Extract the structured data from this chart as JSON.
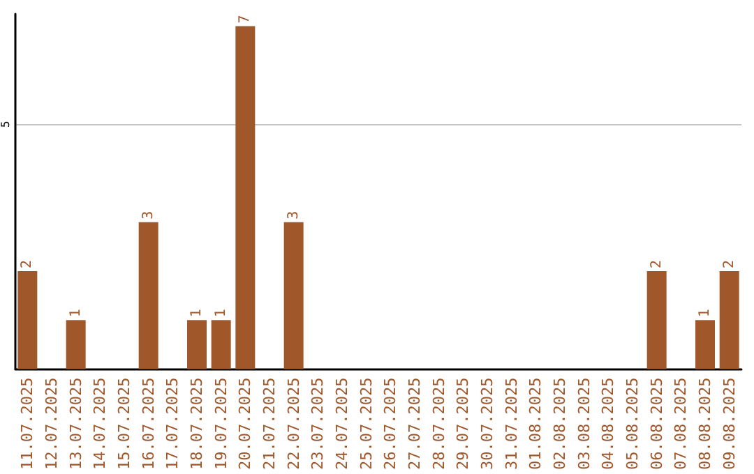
{
  "chart_data": {
    "type": "bar",
    "categories": [
      "11.07.2025",
      "12.07.2025",
      "13.07.2025",
      "14.07.2025",
      "15.07.2025",
      "16.07.2025",
      "17.07.2025",
      "18.07.2025",
      "19.07.2025",
      "20.07.2025",
      "21.07.2025",
      "22.07.2025",
      "23.07.2025",
      "24.07.2025",
      "25.07.2025",
      "26.07.2025",
      "27.07.2025",
      "28.07.2025",
      "29.07.2025",
      "30.07.2025",
      "31.07.2025",
      "01.08.2025",
      "02.08.2025",
      "03.08.2025",
      "04.08.2025",
      "05.08.2025",
      "06.08.2025",
      "07.08.2025",
      "08.08.2025",
      "09.08.2025"
    ],
    "values": [
      2,
      0,
      1,
      0,
      0,
      3,
      0,
      1,
      1,
      7,
      0,
      3,
      0,
      0,
      0,
      0,
      0,
      0,
      0,
      0,
      0,
      0,
      0,
      0,
      0,
      0,
      2,
      0,
      1,
      2
    ],
    "value_labels": [
      "2",
      null,
      "1",
      null,
      null,
      "3",
      null,
      "1",
      "1",
      "7",
      null,
      "3",
      null,
      null,
      null,
      null,
      null,
      null,
      null,
      null,
      null,
      null,
      null,
      null,
      null,
      null,
      "2",
      null,
      "1",
      "2"
    ],
    "color": "#a0572a",
    "ylim": [
      0,
      7.25
    ],
    "yticks": [
      5
    ],
    "grid": "y"
  }
}
